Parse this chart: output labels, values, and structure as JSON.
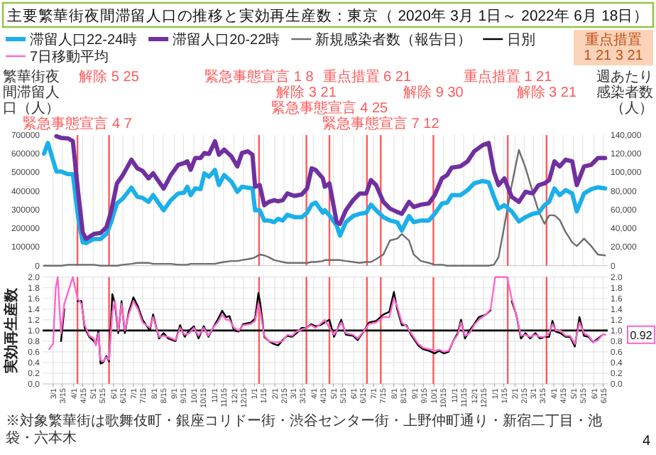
{
  "chart_data": [
    {
      "type": "line",
      "title": "主要繁華街夜間滞留人口の推移と実効再生産数：東京（ 2020年 3月 1日～ 2022年 6月 18日）",
      "ylabel": "繁華街夜間滞留人口（人）",
      "y2label": "週あたり感染者数（人）",
      "legend": "top",
      "grid": "x",
      "tick_labels": "y",
      "xlim": [
        "2020-02-14",
        "2022-06-22"
      ],
      "xticks": [
        {
          "value": "2020-03-01",
          "label": null
        },
        {
          "value": "2020-03-15",
          "label": null
        },
        {
          "value": "2020-04-01",
          "label": null
        },
        {
          "value": "2020-04-15",
          "label": null
        },
        {
          "value": "2020-05-01",
          "label": null
        },
        {
          "value": "2020-05-15",
          "label": null
        },
        {
          "value": "2020-06-01",
          "label": null
        },
        {
          "value": "2020-06-15",
          "label": null
        },
        {
          "value": "2020-07-01",
          "label": null
        },
        {
          "value": "2020-07-15",
          "label": null
        },
        {
          "value": "2020-08-01",
          "label": null
        },
        {
          "value": "2020-08-15",
          "label": null
        },
        {
          "value": "2020-09-01",
          "label": null
        },
        {
          "value": "2020-09-15",
          "label": null
        },
        {
          "value": "2020-10-01",
          "label": null
        },
        {
          "value": "2020-10-15",
          "label": null
        },
        {
          "value": "2020-11-01",
          "label": null
        },
        {
          "value": "2020-11-15",
          "label": null
        },
        {
          "value": "2020-12-01",
          "label": null
        },
        {
          "value": "2020-12-15",
          "label": null
        },
        {
          "value": "2021-01-01",
          "label": null
        },
        {
          "value": "2021-01-15",
          "label": null
        },
        {
          "value": "2021-02-01",
          "label": null
        },
        {
          "value": "2021-02-15",
          "label": null
        },
        {
          "value": "2021-03-01",
          "label": null
        },
        {
          "value": "2021-03-15",
          "label": null
        },
        {
          "value": "2021-04-01",
          "label": null
        },
        {
          "value": "2021-04-15",
          "label": null
        },
        {
          "value": "2021-05-01",
          "label": null
        },
        {
          "value": "2021-05-15",
          "label": null
        },
        {
          "value": "2021-06-01",
          "label": null
        },
        {
          "value": "2021-06-15",
          "label": null
        },
        {
          "value": "2021-07-01",
          "label": null
        },
        {
          "value": "2021-07-15",
          "label": null
        },
        {
          "value": "2021-08-01",
          "label": null
        },
        {
          "value": "2021-08-15",
          "label": null
        },
        {
          "value": "2021-09-01",
          "label": null
        },
        {
          "value": "2021-09-15",
          "label": null
        },
        {
          "value": "2021-10-01",
          "label": null
        },
        {
          "value": "2021-10-15",
          "label": null
        },
        {
          "value": "2021-11-01",
          "label": null
        },
        {
          "value": "2021-11-15",
          "label": null
        },
        {
          "value": "2021-12-01",
          "label": null
        },
        {
          "value": "2021-12-15",
          "label": null
        },
        {
          "value": "2022-01-01",
          "label": null
        },
        {
          "value": "2022-01-15",
          "label": null
        },
        {
          "value": "2022-02-01",
          "label": null
        },
        {
          "value": "2022-02-15",
          "label": null
        },
        {
          "value": "2022-03-01",
          "label": null
        },
        {
          "value": "2022-03-15",
          "label": null
        },
        {
          "value": "2022-04-01",
          "label": null
        },
        {
          "value": "2022-04-15",
          "label": null
        },
        {
          "value": "2022-05-01",
          "label": null
        },
        {
          "value": "2022-05-15",
          "label": null
        },
        {
          "value": "2022-06-01",
          "label": null
        },
        {
          "value": "2022-06-15",
          "label": null
        }
      ],
      "ylim": [
        0,
        700000
      ],
      "yticks": [
        0,
        100000,
        200000,
        300000,
        400000,
        500000,
        600000,
        700000
      ],
      "y2lim": [
        0,
        140000
      ],
      "y2ticks": [
        0,
        {
          "value": 20000,
          "label": "20,000"
        },
        {
          "value": 40000,
          "label": "40,000"
        },
        {
          "value": 60000,
          "label": "60,000"
        },
        {
          "value": 80000,
          "label": "80,000"
        },
        {
          "value": 100000,
          "label": "100,000"
        },
        {
          "value": 120000,
          "label": "120,000"
        },
        {
          "value": 140000,
          "label": "140,000"
        }
      ],
      "x": [
        "2020-02-16",
        "2020-02-22",
        "2020-03-06",
        "2020-03-13",
        "2020-03-24",
        "2020-03-31",
        "2020-04-08",
        "2020-04-15",
        "2020-04-20",
        "2020-05-02",
        "2020-05-12",
        "2020-05-21",
        "2020-05-28",
        "2020-06-06",
        "2020-06-15",
        "2020-06-28",
        "2020-07-07",
        "2020-07-15",
        "2020-07-24",
        "2020-07-31",
        "2020-08-16",
        "2020-08-27",
        "2020-09-07",
        "2020-09-16",
        "2020-09-21",
        "2020-09-26",
        "2020-10-03",
        "2020-10-11",
        "2020-10-17",
        "2020-10-24",
        "2020-11-02",
        "2020-11-08",
        "2020-11-16",
        "2020-11-27",
        "2020-12-06",
        "2020-12-13",
        "2020-12-22",
        "2020-12-29",
        "2021-01-02",
        "2021-01-09",
        "2021-01-16",
        "2021-01-23",
        "2021-01-31",
        "2021-02-06",
        "2021-02-13",
        "2021-02-20",
        "2021-03-03",
        "2021-03-14",
        "2021-03-22",
        "2021-03-29",
        "2021-04-04",
        "2021-04-15",
        "2021-04-18",
        "2021-04-25",
        "2021-05-06",
        "2021-05-11",
        "2021-05-20",
        "2021-05-31",
        "2021-06-10",
        "2021-06-20",
        "2021-06-27",
        "2021-07-05",
        "2021-07-16",
        "2021-07-26",
        "2021-08-06",
        "2021-08-13",
        "2021-08-24",
        "2021-08-31",
        "2021-09-11",
        "2021-09-23",
        "2021-10-02",
        "2021-10-13",
        "2021-10-21",
        "2021-10-28",
        "2021-11-10",
        "2021-11-21",
        "2021-12-01",
        "2021-12-14",
        "2021-12-23",
        "2021-12-31",
        "2022-01-07",
        "2022-01-16",
        "2022-01-27",
        "2022-02-07",
        "2022-02-17",
        "2022-02-28",
        "2022-03-09",
        "2022-03-18",
        "2022-03-25",
        "2022-04-02",
        "2022-04-10",
        "2022-04-19",
        "2022-04-29",
        "2022-05-06",
        "2022-05-17",
        "2022-05-28",
        "2022-06-07",
        "2022-06-18"
      ],
      "series": [
        {
          "name": "滞留人口22-24時",
          "color": "#1ab0ea",
          "values": [
            600000,
            658000,
            505000,
            505000,
            490000,
            490000,
            260000,
            125000,
            121000,
            143000,
            143000,
            170000,
            233000,
            333000,
            360000,
            418000,
            369000,
            363000,
            342000,
            378000,
            297000,
            351000,
            387000,
            391000,
            423000,
            378000,
            414000,
            410000,
            495000,
            477000,
            513000,
            432000,
            486000,
            450000,
            396000,
            423000,
            418000,
            414000,
            297000,
            297000,
            242000,
            242000,
            233000,
            251000,
            242000,
            273000,
            260000,
            260000,
            284000,
            327000,
            338000,
            284000,
            297000,
            269000,
            215000,
            161000,
            233000,
            266000,
            278000,
            284000,
            327000,
            297000,
            260000,
            242000,
            233000,
            188000,
            266000,
            233000,
            242000,
            242000,
            278000,
            333000,
            338000,
            378000,
            378000,
            405000,
            441000,
            454000,
            447000,
            369000,
            306000,
            324000,
            291000,
            237000,
            260000,
            278000,
            284000,
            324000,
            342000,
            414000,
            378000,
            405000,
            387000,
            291000,
            387000,
            410000,
            420000,
            414000
          ]
        },
        {
          "name": "滞留人口20-22時",
          "color": "#7030a0",
          "values": [
            null,
            null,
            694000,
            685000,
            682000,
            667000,
            396000,
            179000,
            143000,
            170000,
            175000,
            206000,
            288000,
            441000,
            486000,
            568000,
            522000,
            508000,
            468000,
            495000,
            413000,
            486000,
            540000,
            550000,
            559000,
            514000,
            577000,
            577000,
            604000,
            599000,
            667000,
            595000,
            622000,
            586000,
            532000,
            604000,
            613000,
            595000,
            423000,
            432000,
            324000,
            342000,
            351000,
            345000,
            351000,
            387000,
            374000,
            382000,
            414000,
            522000,
            513000,
            468000,
            423000,
            441000,
            233000,
            224000,
            297000,
            351000,
            387000,
            387000,
            459000,
            432000,
            342000,
            306000,
            288000,
            278000,
            342000,
            315000,
            327000,
            333000,
            378000,
            468000,
            486000,
            526000,
            532000,
            559000,
            613000,
            646000,
            658000,
            504000,
            432000,
            468000,
            369000,
            342000,
            396000,
            387000,
            432000,
            441000,
            459000,
            559000,
            532000,
            568000,
            559000,
            432000,
            532000,
            541000,
            577000,
            577000
          ]
        },
        {
          "name": "新規感染者数（報告日）",
          "color": "#6e6e6e",
          "axis": "y2",
          "values": [
            0,
            0,
            0,
            0,
            1000,
            1000,
            1000,
            1000,
            1000,
            1000,
            0,
            0,
            0,
            0,
            1000,
            2000,
            3000,
            3000,
            3000,
            2000,
            2000,
            2000,
            1000,
            1000,
            1000,
            2000,
            2000,
            2000,
            2000,
            2000,
            2000,
            3000,
            4000,
            5000,
            5000,
            6000,
            7000,
            8000,
            9000,
            12000,
            11000,
            9000,
            6000,
            5000,
            4000,
            3000,
            3000,
            3000,
            3000,
            4000,
            4000,
            5000,
            6000,
            6000,
            6000,
            6000,
            5000,
            4000,
            3000,
            4000,
            4000,
            7000,
            12000,
            27000,
            29000,
            34000,
            27000,
            12000,
            5000,
            3000,
            1000,
            1000,
            0,
            0,
            0,
            0,
            0,
            0,
            0,
            1000,
            9000,
            43000,
            86000,
            124000,
            105000,
            79000,
            58000,
            45000,
            54000,
            54000,
            49000,
            36000,
            25000,
            21000,
            29000,
            21000,
            12000,
            11000
          ]
        }
      ],
      "ref_lines": [
        {
          "axis": "x",
          "value": "2020-04-07",
          "label": "緊急事態宣言 4 7",
          "color": "#ff5a5a"
        },
        {
          "axis": "x",
          "value": "2020-05-25",
          "label": "解除 5 25",
          "color": "#ff5a5a"
        },
        {
          "axis": "x",
          "value": "2021-01-08",
          "label": "緊急事態宣言 1 8",
          "color": "#ff5a5a"
        },
        {
          "axis": "x",
          "value": "2021-03-21",
          "label": "解除 3 21",
          "color": "#ff5a5a"
        },
        {
          "axis": "x",
          "value": "2021-04-25",
          "label": "緊急事態宣言 4 25",
          "color": "#ff5a5a"
        },
        {
          "axis": "x",
          "value": "2021-06-21",
          "label": "重点措置 6 21",
          "color": "#ff5a5a"
        },
        {
          "axis": "x",
          "value": "2021-07-12",
          "label": "緊急事態宣言 7 12",
          "color": "#ff5a5a"
        },
        {
          "axis": "x",
          "value": "2021-09-30",
          "label": "解除 9 30",
          "color": "#ff5a5a"
        },
        {
          "axis": "x",
          "value": "2022-01-21",
          "label": "重点措置 1 21",
          "color": "#ff5a5a"
        },
        {
          "axis": "x",
          "value": "2022-03-21",
          "label": "解除 3 21",
          "color": "#ff5a5a"
        }
      ],
      "annotations": [
        "重点措置 1 21 3 21"
      ]
    },
    {
      "type": "line",
      "ylabel": "実効再生産数",
      "legend": "top",
      "grid": true,
      "xlim": [
        "2020-02-14",
        "2022-06-22"
      ],
      "xticks": [
        {
          "value": "2020-03-01",
          "label": "3/1"
        },
        {
          "value": "2020-03-15",
          "label": "3/15"
        },
        {
          "value": "2020-04-01",
          "label": "4/1"
        },
        {
          "value": "2020-04-15",
          "label": "4/15"
        },
        {
          "value": "2020-05-01",
          "label": "5/1"
        },
        {
          "value": "2020-05-15",
          "label": "5/15"
        },
        {
          "value": "2020-06-01",
          "label": "6/1"
        },
        {
          "value": "2020-06-15",
          "label": "6/15"
        },
        {
          "value": "2020-07-01",
          "label": "7/1"
        },
        {
          "value": "2020-07-15",
          "label": "7/15"
        },
        {
          "value": "2020-08-01",
          "label": "8/1"
        },
        {
          "value": "2020-08-15",
          "label": "8/15"
        },
        {
          "value": "2020-09-01",
          "label": "9/1"
        },
        {
          "value": "2020-09-15",
          "label": "9/15"
        },
        {
          "value": "2020-10-01",
          "label": "10/1"
        },
        {
          "value": "2020-10-15",
          "label": "10/15"
        },
        {
          "value": "2020-11-01",
          "label": "11/1"
        },
        {
          "value": "2020-11-15",
          "label": "11/15"
        },
        {
          "value": "2020-12-01",
          "label": "12/1"
        },
        {
          "value": "2020-12-15",
          "label": "12/15"
        },
        {
          "value": "2021-01-01",
          "label": "1/1"
        },
        {
          "value": "2021-01-15",
          "label": "1/15"
        },
        {
          "value": "2021-02-01",
          "label": "2/1"
        },
        {
          "value": "2021-02-15",
          "label": "2/15"
        },
        {
          "value": "2021-03-01",
          "label": "3/1"
        },
        {
          "value": "2021-03-15",
          "label": "3/15"
        },
        {
          "value": "2021-04-01",
          "label": "4/1"
        },
        {
          "value": "2021-04-15",
          "label": "4/15"
        },
        {
          "value": "2021-05-01",
          "label": "5/1"
        },
        {
          "value": "2021-05-15",
          "label": "5/15"
        },
        {
          "value": "2021-06-01",
          "label": "6/1"
        },
        {
          "value": "2021-06-15",
          "label": "6/15"
        },
        {
          "value": "2021-07-01",
          "label": "7/1"
        },
        {
          "value": "2021-07-15",
          "label": "7/15"
        },
        {
          "value": "2021-08-01",
          "label": "8/1"
        },
        {
          "value": "2021-08-15",
          "label": "8/15"
        },
        {
          "value": "2021-09-01",
          "label": "9/1"
        },
        {
          "value": "2021-09-15",
          "label": "9/15"
        },
        {
          "value": "2021-10-01",
          "label": "10/1"
        },
        {
          "value": "2021-10-15",
          "label": "10/15"
        },
        {
          "value": "2021-11-01",
          "label": "11/1"
        },
        {
          "value": "2021-11-15",
          "label": "11/15"
        },
        {
          "value": "2021-12-01",
          "label": "12/1"
        },
        {
          "value": "2021-12-15",
          "label": "12/15"
        },
        {
          "value": "2022-01-01",
          "label": "1/1"
        },
        {
          "value": "2022-01-15",
          "label": "1/15"
        },
        {
          "value": "2022-02-01",
          "label": "2/1"
        },
        {
          "value": "2022-02-15",
          "label": "2/15"
        },
        {
          "value": "2022-03-01",
          "label": "3/1"
        },
        {
          "value": "2022-03-15",
          "label": "3/15"
        },
        {
          "value": "2022-04-01",
          "label": "4/1"
        },
        {
          "value": "2022-04-15",
          "label": "4/15"
        },
        {
          "value": "2022-05-01",
          "label": "5/1"
        },
        {
          "value": "2022-05-15",
          "label": "5/15"
        },
        {
          "value": "2022-06-01",
          "label": "6/1"
        },
        {
          "value": "2022-06-15",
          "label": "6/15"
        }
      ],
      "ylim": [
        0,
        2
      ],
      "yticks": [
        {
          "value": 0,
          "label": "0.0"
        },
        0.2,
        0.4,
        0.6,
        0.8,
        {
          "value": 1,
          "label": "1.0"
        },
        1.2,
        1.4,
        1.6,
        1.8,
        {
          "value": 2,
          "label": "2.0"
        }
      ],
      "y2lim": [
        0,
        2
      ],
      "y2ticks": [
        {
          "value": 0,
          "label": "0.0"
        },
        0.2,
        0.4,
        0.6,
        0.8,
        {
          "value": 1,
          "label": "1.0"
        },
        1.2,
        1.4,
        1.6,
        1.8,
        {
          "value": 2,
          "label": "2.0"
        }
      ],
      "x": [
        "2020-02-24",
        "2020-03-01",
        "2020-03-05",
        "2020-03-08",
        "2020-03-13",
        "2020-03-18",
        "2020-03-31",
        "2020-04-07",
        "2020-04-13",
        "2020-04-18",
        "2020-04-25",
        "2020-05-02",
        "2020-05-05",
        "2020-05-09",
        "2020-05-12",
        "2020-05-16",
        "2020-05-21",
        "2020-05-25",
        "2020-05-30",
        "2020-06-03",
        "2020-06-08",
        "2020-06-13",
        "2020-06-18",
        "2020-06-24",
        "2020-07-01",
        "2020-07-08",
        "2020-07-15",
        "2020-07-26",
        "2020-07-31",
        "2020-08-09",
        "2020-08-16",
        "2020-08-23",
        "2020-09-03",
        "2020-09-10",
        "2020-09-17",
        "2020-09-24",
        "2020-10-01",
        "2020-10-08",
        "2020-10-16",
        "2020-10-23",
        "2020-10-30",
        "2020-11-06",
        "2020-11-13",
        "2020-11-19",
        "2020-11-24",
        "2020-12-01",
        "2020-12-08",
        "2020-12-15",
        "2020-12-26",
        "2021-01-02",
        "2021-01-07",
        "2021-01-10",
        "2021-01-16",
        "2021-01-23",
        "2021-01-30",
        "2021-02-06",
        "2021-02-13",
        "2021-02-20",
        "2021-02-27",
        "2021-03-06",
        "2021-03-14",
        "2021-03-21",
        "2021-03-28",
        "2021-04-04",
        "2021-04-11",
        "2021-04-18",
        "2021-04-25",
        "2021-05-02",
        "2021-05-13",
        "2021-05-20",
        "2021-05-31",
        "2021-06-07",
        "2021-06-17",
        "2021-06-24",
        "2021-07-05",
        "2021-07-16",
        "2021-07-25",
        "2021-08-01",
        "2021-08-06",
        "2021-08-13",
        "2021-08-20",
        "2021-08-27",
        "2021-09-07",
        "2021-09-14",
        "2021-09-23",
        "2021-10-02",
        "2021-10-09",
        "2021-10-16",
        "2021-10-23",
        "2021-10-30",
        "2021-11-06",
        "2021-11-11",
        "2021-11-17",
        "2021-11-24",
        "2021-12-01",
        "2021-12-08",
        "2021-12-19",
        "2021-12-26",
        "2022-01-02",
        "2022-01-20",
        "2022-01-27",
        "2022-02-03",
        "2022-02-10",
        "2022-02-17",
        "2022-02-24",
        "2022-03-04",
        "2022-03-11",
        "2022-03-18",
        "2022-03-25",
        "2022-03-30",
        "2022-04-04",
        "2022-04-11",
        "2022-04-19",
        "2022-04-26",
        "2022-05-03",
        "2022-05-10",
        "2022-05-17",
        "2022-05-24",
        "2022-05-31",
        "2022-06-07",
        "2022-06-14",
        "2022-06-18"
      ],
      "series": [
        {
          "name": "日別",
          "color": "#000000",
          "values": [
            null,
            null,
            null,
            null,
            0.8,
            1.4,
            null,
            1.55,
            1.55,
            1.05,
            0.88,
            0.8,
            0.75,
            1.0,
            0.38,
            0.4,
            0.52,
            0.42,
            1.68,
            1.5,
            0.95,
            1.55,
            0.95,
            1.35,
            1.62,
            1.45,
            1.2,
            1.0,
            1.3,
            0.85,
            0.95,
            0.85,
            0.8,
            1.1,
            0.88,
            1.0,
            1.08,
            0.85,
            1.08,
            0.88,
            1.05,
            1.2,
            1.37,
            1.25,
            1.27,
            1.0,
            0.98,
            1.12,
            1.15,
            1.22,
            1.7,
            1.5,
            0.88,
            0.8,
            0.75,
            0.72,
            0.82,
            0.9,
            0.88,
            0.95,
            1.05,
            1.05,
            1.12,
            1.08,
            1.1,
            1.15,
            1.2,
            0.88,
            1.2,
            0.92,
            0.9,
            0.82,
            1.0,
            1.15,
            1.18,
            1.3,
            1.35,
            1.72,
            1.4,
            1.1,
            1.1,
            0.92,
            0.72,
            0.65,
            0.62,
            0.57,
            0.62,
            0.57,
            0.6,
            0.8,
            0.95,
            1.2,
            0.85,
            1.0,
            1.12,
            1.25,
            1.3,
            1.38,
            null,
            null,
            1.55,
            1.3,
            0.85,
            0.95,
            0.85,
            0.95,
            0.85,
            0.88,
            0.88,
            1.18,
            0.98,
            0.95,
            0.88,
            0.88,
            0.7,
            1.25,
            0.9,
            0.88,
            0.78,
            0.85,
            0.92,
            0.92
          ]
        },
        {
          "name": "7日移動平均",
          "color": "#ff66cc",
          "values": [
            0.65,
            0.75,
            1.8,
            2.0,
            0.95,
            1.5,
            2.0,
            1.6,
            1.5,
            1.1,
            0.9,
            0.85,
            0.72,
            0.95,
            0.45,
            0.42,
            0.5,
            0.45,
            1.35,
            1.55,
            1.0,
            1.5,
            1.0,
            1.3,
            1.55,
            1.4,
            1.15,
            1.05,
            1.25,
            0.88,
            0.9,
            0.88,
            0.82,
            1.05,
            0.92,
            0.95,
            1.05,
            0.9,
            1.05,
            0.9,
            1.05,
            1.15,
            1.3,
            1.2,
            1.2,
            1.05,
            1.0,
            1.1,
            1.12,
            1.18,
            1.5,
            1.35,
            0.9,
            0.8,
            0.78,
            0.78,
            0.8,
            0.92,
            0.9,
            0.98,
            1.02,
            1.05,
            1.1,
            1.05,
            1.12,
            1.2,
            1.05,
            0.92,
            1.15,
            0.95,
            0.92,
            0.85,
            1.0,
            1.12,
            1.15,
            1.25,
            1.25,
            1.6,
            1.45,
            1.15,
            1.08,
            0.95,
            0.75,
            0.68,
            0.65,
            0.62,
            0.64,
            0.6,
            0.62,
            0.8,
            0.92,
            1.15,
            0.9,
            0.95,
            1.1,
            1.2,
            1.3,
            1.4,
            2.0,
            2.0,
            1.6,
            1.3,
            0.9,
            0.92,
            0.88,
            0.92,
            0.88,
            0.88,
            0.95,
            1.12,
            1.0,
            1.0,
            0.9,
            0.9,
            0.75,
            1.15,
            0.95,
            0.9,
            0.78,
            0.82,
            0.92,
            0.92
          ]
        }
      ],
      "ref_lines": [
        {
          "axis": "x",
          "value": "2020-04-07",
          "color": "#ff5a5a"
        },
        {
          "axis": "x",
          "value": "2020-05-25",
          "color": "#ff5a5a"
        },
        {
          "axis": "x",
          "value": "2021-01-08",
          "color": "#ff5a5a"
        },
        {
          "axis": "x",
          "value": "2021-03-21",
          "color": "#ff5a5a"
        },
        {
          "axis": "x",
          "value": "2021-04-25",
          "color": "#ff5a5a"
        },
        {
          "axis": "x",
          "value": "2021-06-21",
          "color": "#ff5a5a"
        },
        {
          "axis": "x",
          "value": "2021-07-12",
          "color": "#ff5a5a"
        },
        {
          "axis": "x",
          "value": "2021-09-30",
          "color": "#ff5a5a"
        },
        {
          "axis": "x",
          "value": "2022-01-21",
          "color": "#ff5a5a"
        },
        {
          "axis": "x",
          "value": "2022-03-21",
          "color": "#ff5a5a"
        },
        {
          "axis": "y",
          "value": 1,
          "color": "#000000"
        }
      ],
      "annotations": [
        "※対象繁華街は歌舞伎町・銀座コリドー街・渋谷センター街・上野仲町通り・新宿二丁目・池袋・六本木",
        "4",
        {
          "text": "0.92",
          "x": "2022-06-18",
          "y": 0.92
        }
      ]
    }
  ]
}
